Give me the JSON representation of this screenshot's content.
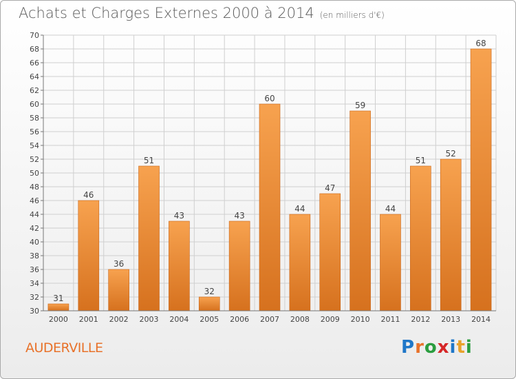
{
  "title": "Achats et Charges Externes 2000 à 2014",
  "subtitle": "(en milliers d'€)",
  "commune": "AUDERVILLE",
  "logo": {
    "text": "Proxiti",
    "colors": [
      "#1f77c8",
      "#e8722a",
      "#2a9d3f",
      "#d62728",
      "#1f77c8",
      "#e8a22a",
      "#2a9d3f"
    ]
  },
  "colors": {
    "bar_top": "#f7a24f",
    "bar_bottom": "#d6711e",
    "bar_edge": "#c96518",
    "grid": "#cfcfcf",
    "commune": "#e8722a"
  },
  "chart_data": {
    "type": "bar",
    "title": "Achats et Charges Externes 2000 à 2014",
    "subtitle": "(en milliers d'€)",
    "categories": [
      "2000",
      "2001",
      "2002",
      "2003",
      "2004",
      "2005",
      "2006",
      "2007",
      "2008",
      "2009",
      "2010",
      "2011",
      "2012",
      "2013",
      "2014"
    ],
    "values": [
      31,
      46,
      36,
      51,
      43,
      32,
      43,
      60,
      44,
      47,
      59,
      44,
      51,
      52,
      68
    ],
    "ylim": [
      30,
      70
    ],
    "ytick_step": 2,
    "grid": true
  }
}
